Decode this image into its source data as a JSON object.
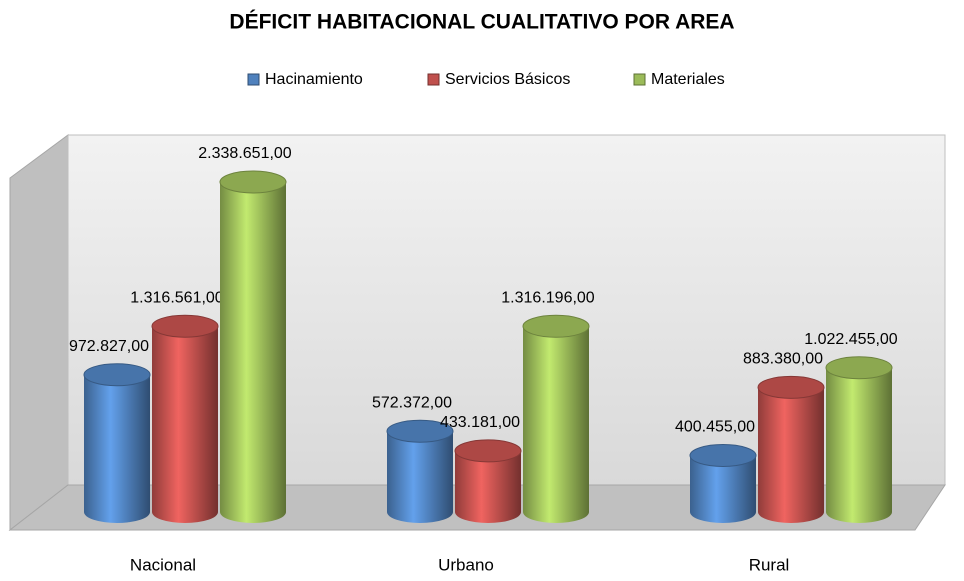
{
  "chart_data": {
    "type": "bar3d",
    "title": "DÉFICIT HABITACIONAL  CUALITATIVO POR  AREA",
    "categories": [
      "Nacional",
      "Urbano",
      "Rural"
    ],
    "series": [
      {
        "name": "Hacinamiento",
        "color": "#4f81bd",
        "values": [
          972827,
          572372,
          400455
        ],
        "value_labels": [
          "972.827,00",
          "572.372,00",
          "400.455,00"
        ]
      },
      {
        "name": "Servicios Básicos",
        "color": "#c0504d",
        "values": [
          1316561,
          433181,
          883380
        ],
        "value_labels": [
          "1.316.561,00",
          "433.181,00",
          "883.380,00"
        ]
      },
      {
        "name": "Materiales",
        "color": "#9bbb59",
        "values": [
          2338651,
          1316196,
          1022455
        ],
        "value_labels": [
          "2.338.651,00",
          "1.316.196,00",
          "1.022.455,00"
        ]
      }
    ],
    "legend": "top"
  }
}
